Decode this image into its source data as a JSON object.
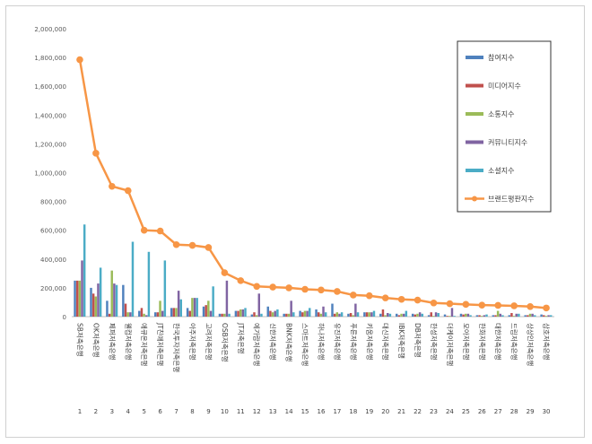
{
  "chart_data": {
    "type": "bar",
    "categories": [
      "SB저축은행",
      "OK저축은행",
      "페퍼저축은행",
      "웰컴저축은행",
      "애큐온저축은행",
      "JT친애저축은행",
      "한국투자저축은행",
      "아주저축은행",
      "고려저축은행",
      "OSB저축은행",
      "JT저축은행",
      "예가람저축은행",
      "신한저축은행",
      "BNK저축은행",
      "스마트저축은행",
      "하나저축은행",
      "유진저축은행",
      "푸른저축은행",
      "키움저축은행",
      "대신저축은행",
      "IBK저축은행",
      "DB저축은행",
      "한성저축은행",
      "더케이저축은행",
      "모아저축은행",
      "한화저축은행",
      "대한저축은행",
      "드림저축은행",
      "상상인저축은행",
      "삼호저축은행"
    ],
    "rank_labels": [
      "1",
      "2",
      "3",
      "4",
      "5",
      "6",
      "7",
      "8",
      "9",
      "10",
      "11",
      "12",
      "13",
      "14",
      "15",
      "16",
      "17",
      "18",
      "19",
      "20",
      "21",
      "22",
      "23",
      "24",
      "25",
      "26",
      "27",
      "28",
      "29",
      "30"
    ],
    "series": [
      {
        "name": "참여지수",
        "color": "#4f81bd",
        "values": [
          250000,
          200000,
          110000,
          220000,
          40000,
          30000,
          60000,
          60000,
          70000,
          20000,
          40000,
          15000,
          70000,
          20000,
          40000,
          50000,
          90000,
          20000,
          30000,
          20000,
          20000,
          20000,
          10000,
          15000,
          20000,
          10000,
          10000,
          10000,
          10000,
          15000
        ]
      },
      {
        "name": "미디어지수",
        "color": "#c0504d",
        "values": [
          250000,
          160000,
          20000,
          90000,
          60000,
          30000,
          60000,
          40000,
          80000,
          20000,
          40000,
          30000,
          40000,
          20000,
          30000,
          30000,
          20000,
          25000,
          30000,
          50000,
          10000,
          15000,
          30000,
          5000,
          15000,
          10000,
          10000,
          25000,
          10000,
          10000
        ]
      },
      {
        "name": "소통지수",
        "color": "#9bbb59",
        "values": [
          250000,
          140000,
          320000,
          30000,
          20000,
          110000,
          60000,
          130000,
          110000,
          20000,
          50000,
          10000,
          30000,
          20000,
          40000,
          20000,
          30000,
          10000,
          30000,
          10000,
          20000,
          20000,
          5000,
          5000,
          20000,
          5000,
          40000,
          5000,
          20000,
          5000
        ]
      },
      {
        "name": "커뮤니티지수",
        "color": "#8064a2",
        "values": [
          390000,
          230000,
          230000,
          30000,
          10000,
          40000,
          180000,
          130000,
          40000,
          250000,
          50000,
          160000,
          40000,
          110000,
          40000,
          70000,
          20000,
          90000,
          30000,
          25000,
          20000,
          30000,
          30000,
          60000,
          20000,
          10000,
          20000,
          20000,
          20000,
          10000
        ]
      },
      {
        "name": "소셜지수",
        "color": "#4bacc6",
        "values": [
          640000,
          340000,
          220000,
          520000,
          450000,
          390000,
          120000,
          130000,
          210000,
          20000,
          60000,
          20000,
          50000,
          30000,
          60000,
          30000,
          30000,
          30000,
          40000,
          20000,
          40000,
          20000,
          25000,
          5000,
          10000,
          15000,
          10000,
          20000,
          10000,
          10000
        ]
      },
      {
        "name": "브랜드평판지수",
        "color": "#f79646",
        "type": "line",
        "values": [
          1785000,
          1135000,
          905000,
          875000,
          600000,
          595000,
          500000,
          495000,
          480000,
          305000,
          250000,
          210000,
          205000,
          200000,
          190000,
          185000,
          175000,
          150000,
          145000,
          130000,
          120000,
          115000,
          95000,
          90000,
          85000,
          80000,
          78000,
          75000,
          70000,
          60000
        ]
      }
    ],
    "y_ticks": [
      "0",
      "200,000",
      "400,000",
      "600,000",
      "800,000",
      "1,000,000",
      "1,200,000",
      "1,400,000",
      "1,600,000",
      "1,800,000",
      "2,000,000"
    ],
    "ylim": [
      0,
      2000000
    ],
    "title": "",
    "xlabel": "",
    "ylabel": "",
    "grid": false,
    "legend_position": "top-right"
  }
}
